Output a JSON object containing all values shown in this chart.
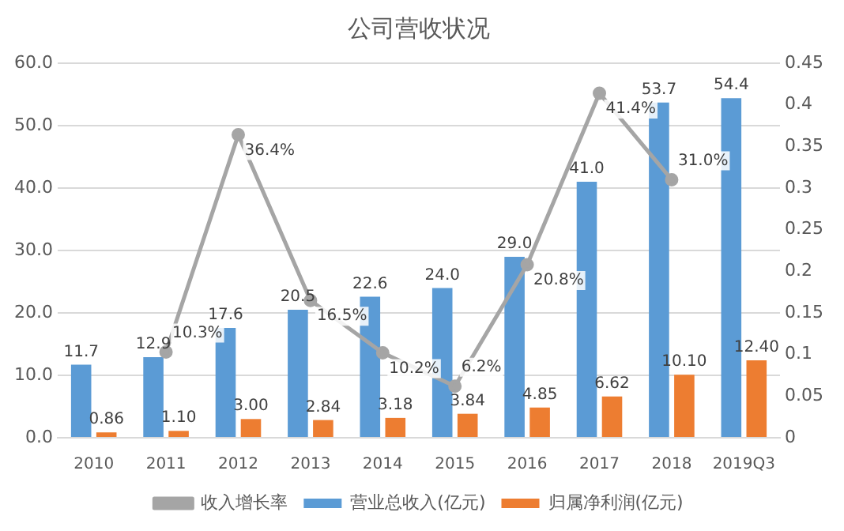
{
  "chart_data": {
    "type": "bar",
    "title": "公司营收状况",
    "categories": [
      "2010",
      "2011",
      "2012",
      "2013",
      "2014",
      "2015",
      "2016",
      "2017",
      "2018",
      "2019Q3"
    ],
    "series": [
      {
        "name": "营业总收入(亿元)",
        "color": "#5b9bd5",
        "values": [
          11.7,
          12.9,
          17.6,
          20.5,
          22.6,
          24.0,
          29.0,
          41.0,
          53.7,
          54.4
        ],
        "value_labels": [
          "11.7",
          "12.9",
          "17.6",
          "20.5",
          "22.6",
          "24.0",
          "29.0",
          "41.0",
          "53.7",
          "54.4"
        ]
      },
      {
        "name": "归属净利润(亿元)",
        "color": "#ed7d31",
        "values": [
          0.86,
          1.1,
          3.0,
          2.84,
          3.18,
          3.84,
          4.85,
          6.62,
          10.1,
          12.4
        ],
        "value_labels": [
          "0.86",
          "1.10",
          "3.00",
          "2.84",
          "3.18",
          "3.84",
          "4.85",
          "6.62",
          "10.10",
          "12.40"
        ]
      },
      {
        "name": "收入增长率",
        "type": "line",
        "axis": "y2",
        "color": "#a5a5a5",
        "values": [
          null,
          0.103,
          0.364,
          0.165,
          0.102,
          0.062,
          0.208,
          0.414,
          0.31,
          null
        ],
        "value_labels": [
          null,
          "10.3%",
          "36.4%",
          "16.5%",
          "10.2%",
          "6.2%",
          "20.8%",
          "41.4%",
          "31.0%",
          null
        ]
      }
    ],
    "ylim": [
      0,
      60
    ],
    "yticks": [
      {
        "value": 0,
        "label": "0.0"
      },
      {
        "value": 10,
        "label": "10.0"
      },
      {
        "value": 20,
        "label": "20.0"
      },
      {
        "value": 30,
        "label": "30.0"
      },
      {
        "value": 40,
        "label": "40.0"
      },
      {
        "value": 50,
        "label": "50.0"
      },
      {
        "value": 60,
        "label": "60.0"
      }
    ],
    "y2lim": [
      0,
      0.45
    ],
    "y2ticks": [
      0,
      0.05,
      0.1,
      0.15,
      0.2,
      0.25,
      0.3,
      0.35,
      0.4,
      0.45
    ],
    "grid": "y",
    "legend": "bottom",
    "marker": "circle",
    "line_style": "solid"
  }
}
